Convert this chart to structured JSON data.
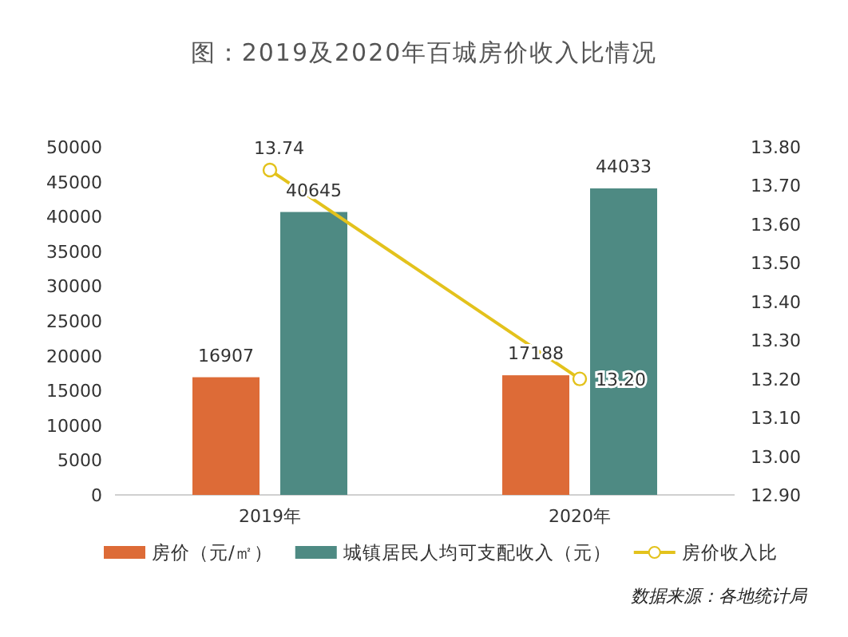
{
  "chart_data": {
    "type": "bar",
    "title": "图：2019及2020年百城房价收入比情况",
    "categories": [
      "2019年",
      "2020年"
    ],
    "series": [
      {
        "name": "房价（元/㎡）",
        "color": "#dd6b37",
        "values": [
          16907,
          17188
        ],
        "value_labels": [
          "16907",
          "17188"
        ]
      },
      {
        "name": "城镇居民人均可支配收入（元）",
        "color": "#4e8a83",
        "values": [
          40645,
          44033
        ],
        "value_labels": [
          "40645",
          "44033"
        ]
      },
      {
        "name": "房价收入比",
        "type": "line",
        "axis": "y2",
        "color": "#e3c21c",
        "marker": "circle",
        "values": [
          13.74,
          13.2
        ],
        "value_labels": [
          "13.74",
          "13.20"
        ]
      }
    ],
    "ylim": [
      0,
      50000
    ],
    "yticks": [
      0,
      5000,
      10000,
      15000,
      20000,
      25000,
      30000,
      35000,
      40000,
      45000,
      50000
    ],
    "y2lim": [
      12.9,
      13.8
    ],
    "y2ticks": [
      {
        "value": 12.9,
        "label": "12.90"
      },
      {
        "value": 13.0,
        "label": "13.00"
      },
      {
        "value": 13.1,
        "label": "13.10"
      },
      {
        "value": 13.2,
        "label": "13.20"
      },
      {
        "value": 13.3,
        "label": "13.30"
      },
      {
        "value": 13.4,
        "label": "13.40"
      },
      {
        "value": 13.5,
        "label": "13.50"
      },
      {
        "value": 13.6,
        "label": "13.60"
      },
      {
        "value": 13.7,
        "label": "13.70"
      },
      {
        "value": 13.8,
        "label": "13.80"
      }
    ],
    "legend": "bottom",
    "annotations": [
      "数据来源：各地统计局"
    ]
  }
}
